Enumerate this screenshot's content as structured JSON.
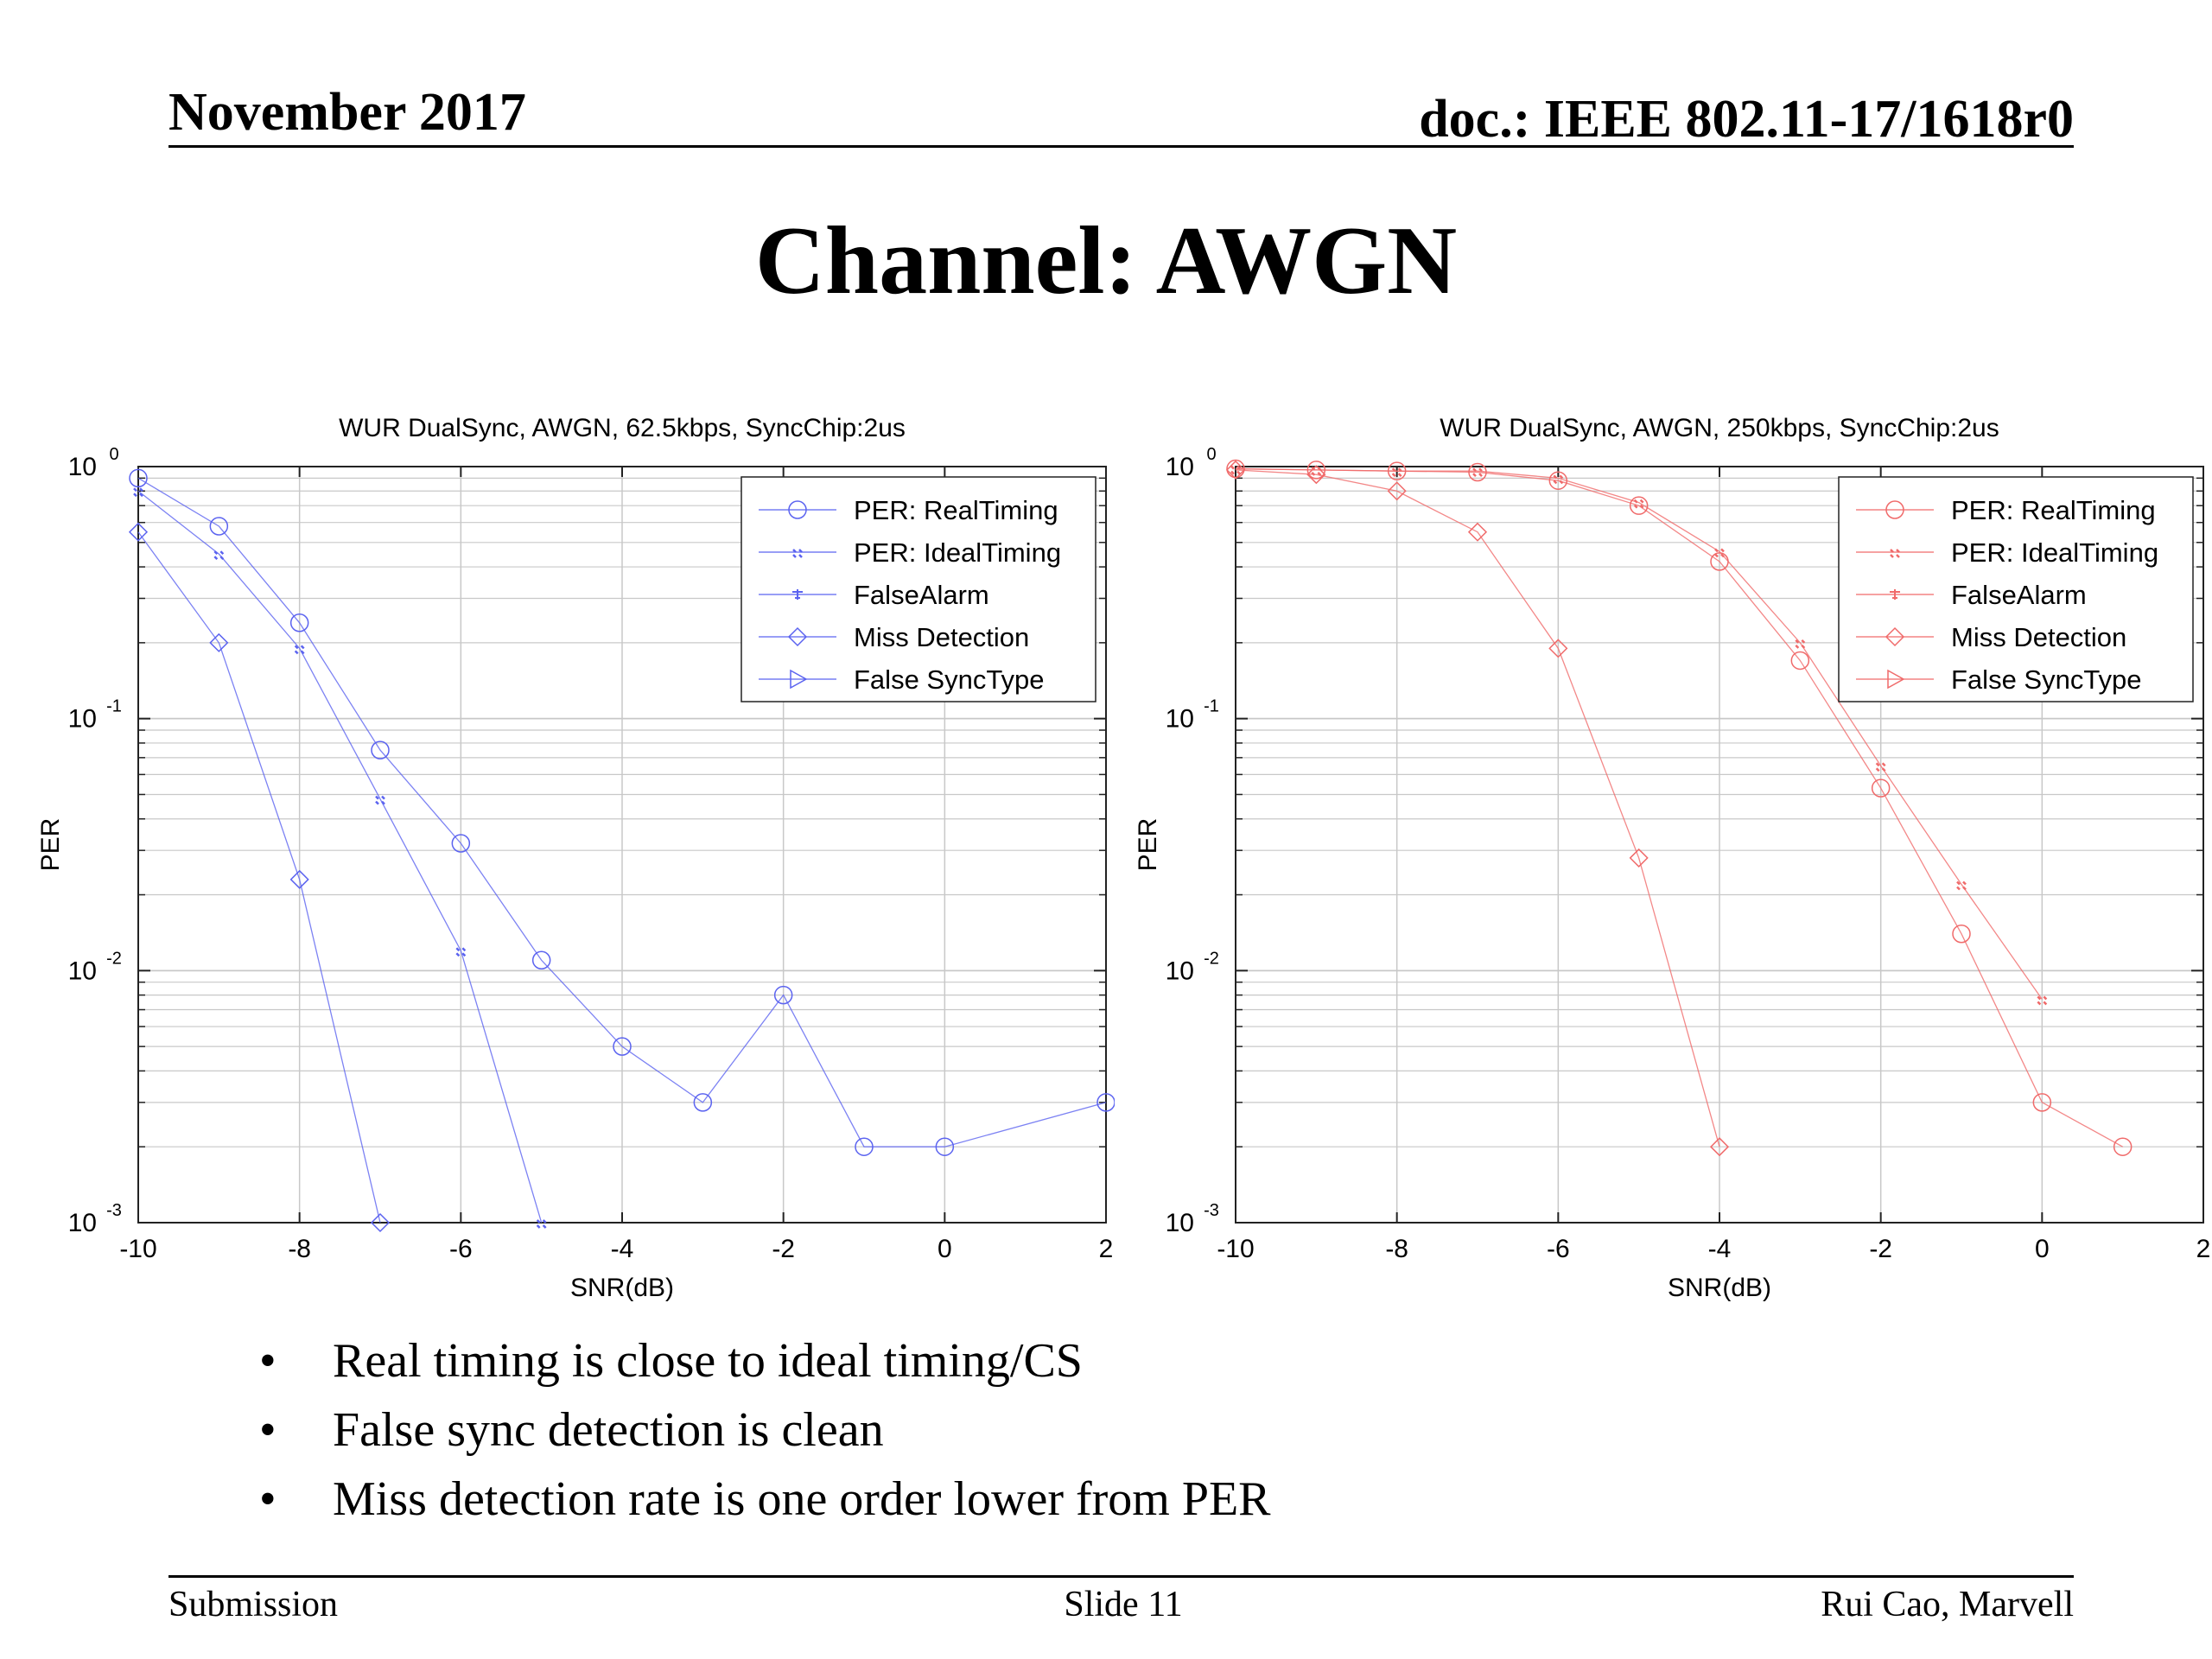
{
  "header": {
    "date": "November 2017",
    "doc": "doc.: IEEE 802.11-17/1618r0"
  },
  "title": "Channel: AWGN",
  "bullets": [
    "Real timing is close to ideal timing/CS",
    "False sync detection is clean",
    "Miss detection rate is one order lower from PER"
  ],
  "footer": {
    "left": "Submission",
    "center": "Slide 11",
    "right": "Rui Cao, Marvell"
  },
  "bullet_char": "•",
  "chart_data": [
    {
      "type": "line",
      "title": "WUR DualSync, AWGN, 62.5kbps, SyncChip:2us",
      "xlabel": "SNR(dB)",
      "ylabel": "PER",
      "xlim": [
        -10,
        2
      ],
      "ylim": [
        0.001,
        1
      ],
      "yscale": "log",
      "grid": true,
      "legend_position": "top-right",
      "color": "#5b63f0",
      "xticks": [
        "-10",
        "-8",
        "-6",
        "-4",
        "-2",
        "0",
        "2"
      ],
      "yticks": [
        "10",
        "10",
        "10",
        "10"
      ],
      "ytick_exponents": [
        "-3",
        "-2",
        "-1",
        "0"
      ],
      "series": [
        {
          "name": "PER: RealTiming",
          "marker": "circle",
          "x": [
            -10,
            -9,
            -8,
            -7,
            -6,
            -5,
            -4,
            -3,
            -2,
            -1,
            0,
            2
          ],
          "y": [
            0.9,
            0.58,
            0.24,
            0.075,
            0.032,
            0.011,
            0.005,
            0.003,
            0.008,
            0.002,
            0.002,
            0.003
          ]
        },
        {
          "name": "PER: IdealTiming",
          "marker": "x",
          "x": [
            -10,
            -9,
            -8,
            -7,
            -6,
            -5
          ],
          "y": [
            0.8,
            0.45,
            0.19,
            0.048,
            0.012,
            0.001
          ]
        },
        {
          "name": "FalseAlarm",
          "marker": "star",
          "x": [],
          "y": []
        },
        {
          "name": "Miss Detection",
          "marker": "diamond",
          "x": [
            -10,
            -9,
            -8,
            -7
          ],
          "y": [
            0.55,
            0.2,
            0.023,
            0.001
          ]
        },
        {
          "name": "False SyncType",
          "marker": "triangle",
          "x": [],
          "y": []
        }
      ]
    },
    {
      "type": "line",
      "title": "WUR DualSync, AWGN, 250kbps, SyncChip:2us",
      "xlabel": "SNR(dB)",
      "ylabel": "PER",
      "xlim": [
        -10,
        2
      ],
      "ylim": [
        0.001,
        1
      ],
      "yscale": "log",
      "grid": true,
      "legend_position": "top-right",
      "color": "#f06a6a",
      "xticks": [
        "-10",
        "-8",
        "-6",
        "-4",
        "-2",
        "0",
        "2"
      ],
      "yticks": [
        "10",
        "10",
        "10",
        "10"
      ],
      "ytick_exponents": [
        "-3",
        "-2",
        "-1",
        "0"
      ],
      "series": [
        {
          "name": "PER: RealTiming",
          "marker": "circle",
          "x": [
            -10,
            -9,
            -8,
            -7,
            -6,
            -5,
            -4,
            -3,
            -2,
            -1,
            0,
            1
          ],
          "y": [
            0.98,
            0.97,
            0.96,
            0.95,
            0.88,
            0.7,
            0.42,
            0.17,
            0.053,
            0.014,
            0.003,
            0.002
          ]
        },
        {
          "name": "PER: IdealTiming",
          "marker": "x",
          "x": [
            -10,
            -9,
            -8,
            -7,
            -6,
            -5,
            -4,
            -3,
            -2,
            -1,
            0
          ],
          "y": [
            0.98,
            0.97,
            0.96,
            0.96,
            0.9,
            0.72,
            0.46,
            0.2,
            0.065,
            0.022,
            0.0077
          ]
        },
        {
          "name": "FalseAlarm",
          "marker": "star",
          "x": [],
          "y": []
        },
        {
          "name": "Miss Detection",
          "marker": "diamond",
          "x": [
            -10,
            -9,
            -8,
            -7,
            -6,
            -5,
            -4
          ],
          "y": [
            0.97,
            0.93,
            0.8,
            0.55,
            0.19,
            0.028,
            0.002
          ]
        },
        {
          "name": "False SyncType",
          "marker": "triangle",
          "x": [],
          "y": []
        }
      ]
    }
  ]
}
